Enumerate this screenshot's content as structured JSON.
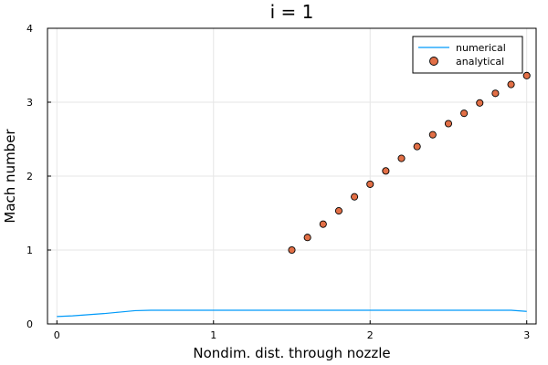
{
  "chart_data": {
    "type": "line",
    "title": "i = 1",
    "xlabel": "Nondim. dist. through nozzle",
    "ylabel": "Mach number",
    "xlim": [
      -0.06,
      3.06
    ],
    "ylim": [
      0,
      4
    ],
    "xticks": [
      0,
      1,
      2,
      3
    ],
    "yticks": [
      0,
      1,
      2,
      3,
      4
    ],
    "grid": true,
    "legend_position": "top-right",
    "series": [
      {
        "name": "numerical",
        "kind": "line",
        "color": "#009af9",
        "x": [
          0.0,
          0.1,
          0.2,
          0.3,
          0.4,
          0.5,
          0.6,
          0.8,
          1.0,
          1.5,
          2.0,
          2.5,
          2.9,
          3.0
        ],
        "y": [
          0.1,
          0.11,
          0.125,
          0.14,
          0.16,
          0.18,
          0.185,
          0.185,
          0.185,
          0.185,
          0.185,
          0.185,
          0.185,
          0.17
        ]
      },
      {
        "name": "analytical",
        "kind": "scatter",
        "color": "#e26f46",
        "x": [
          1.5,
          1.6,
          1.7,
          1.8,
          1.9,
          2.0,
          2.1,
          2.2,
          2.3,
          2.4,
          2.5,
          2.6,
          2.7,
          2.8,
          2.9,
          3.0
        ],
        "y": [
          1.0,
          1.17,
          1.35,
          1.53,
          1.72,
          1.89,
          2.07,
          2.24,
          2.4,
          2.56,
          2.71,
          2.85,
          2.99,
          3.12,
          3.24,
          3.36
        ]
      }
    ]
  }
}
